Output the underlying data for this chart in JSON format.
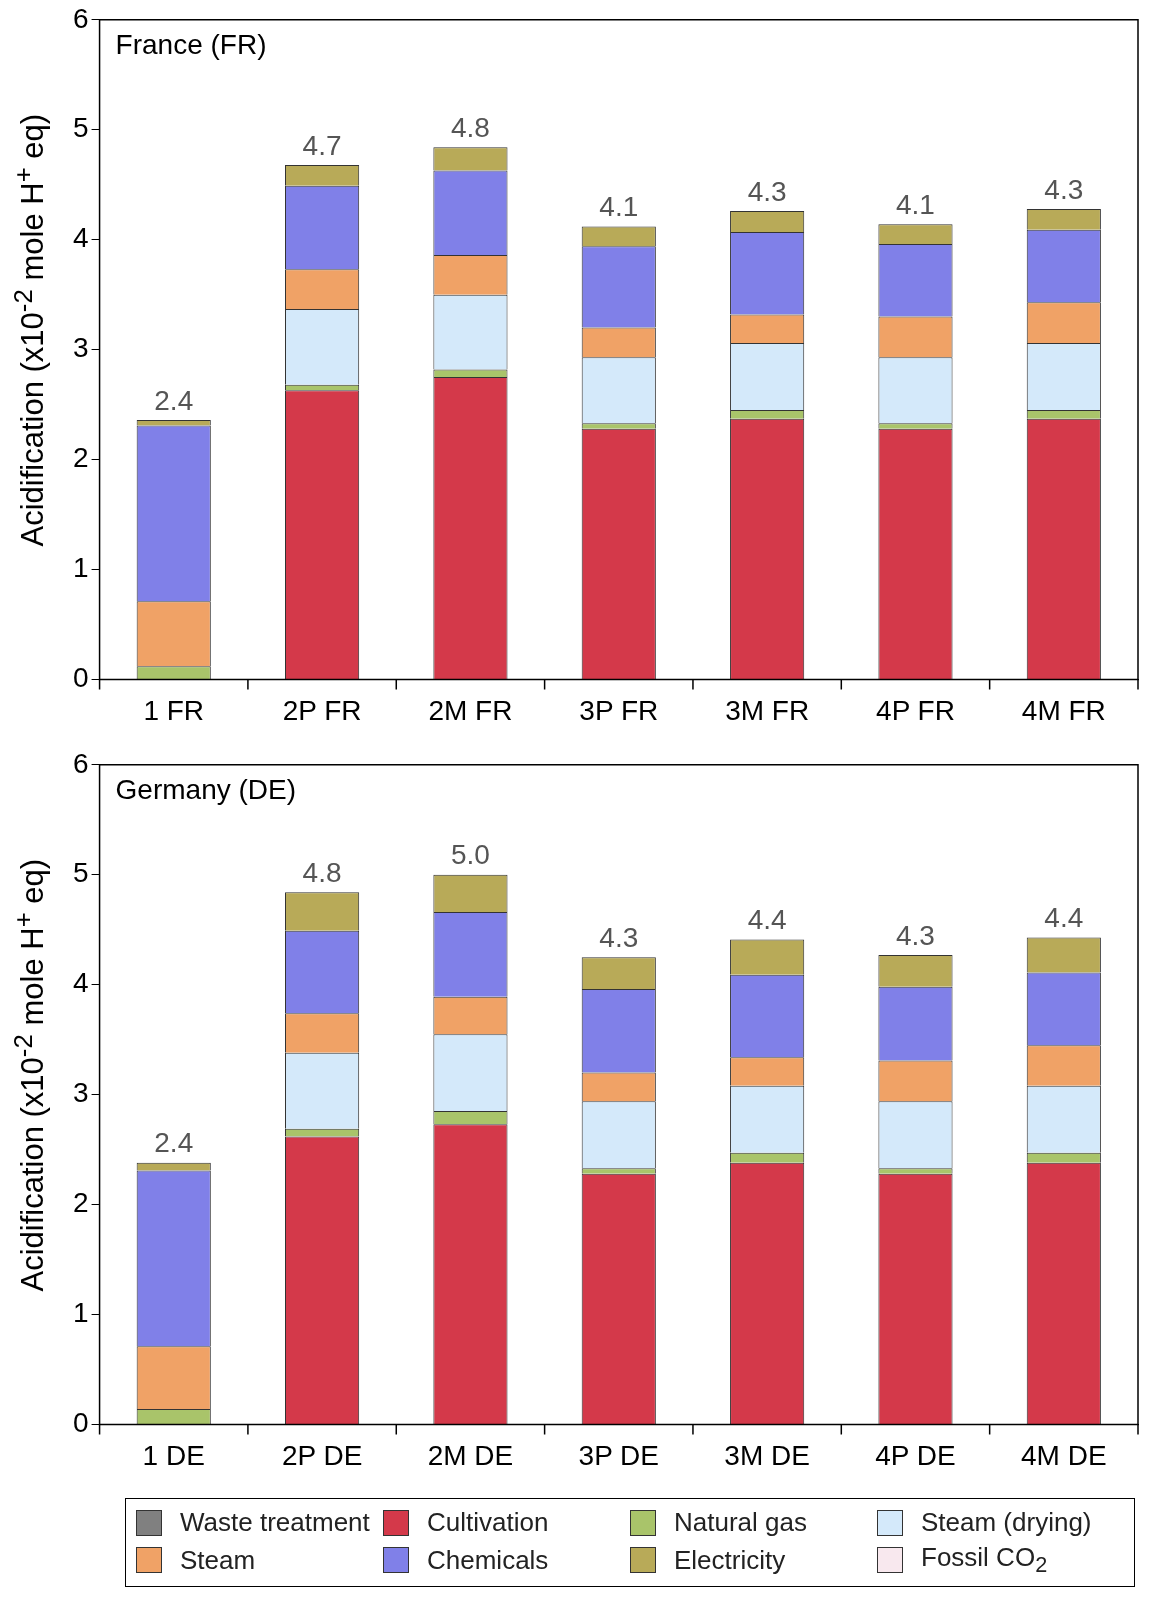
{
  "chart_data": [
    {
      "type": "bar",
      "stacked": true,
      "title": "France (FR)",
      "ylabel": "Acidification (x10$^{-2}$ mole H$^{+}$ eq)",
      "categories": [
        "1 FR",
        "2P FR",
        "2M FR",
        "3P FR",
        "3M FR",
        "4P FR",
        "4M FR"
      ],
      "ylim": [
        0,
        6
      ],
      "yticks": [
        0,
        1,
        2,
        3,
        4,
        5,
        6
      ],
      "grid": false,
      "legend": false,
      "series": [
        {
          "color": "#808080",
          "values": [
            0,
            0,
            0,
            0,
            0,
            0,
            0
          ]
        },
        {
          "color": "#d4394a",
          "values": [
            0,
            2.63,
            2.75,
            2.28,
            2.37,
            2.28,
            2.37
          ]
        },
        {
          "color": "#a9c46a",
          "values": [
            0.12,
            0.05,
            0.07,
            0.05,
            0.08,
            0.05,
            0.08
          ]
        },
        {
          "color": "#d4e9fa",
          "values": [
            0,
            0.69,
            0.68,
            0.6,
            0.61,
            0.6,
            0.61
          ]
        },
        {
          "color": "#f0a266",
          "values": [
            0.59,
            0.36,
            0.36,
            0.27,
            0.26,
            0.37,
            0.37
          ]
        },
        {
          "color": "#8080e8",
          "values": [
            1.6,
            0.76,
            0.77,
            0.74,
            0.75,
            0.66,
            0.66
          ]
        },
        {
          "color": "#b8aa58",
          "values": [
            0.05,
            0.19,
            0.21,
            0.18,
            0.19,
            0.18,
            0.19
          ]
        },
        {
          "color": "#f8e8ee",
          "values": [
            0,
            0,
            0,
            0,
            0,
            0,
            0
          ]
        }
      ],
      "totals": [
        "2.4",
        "4.7",
        "4.8",
        "4.1",
        "4.3",
        "4.1",
        "4.3"
      ]
    },
    {
      "type": "bar",
      "stacked": true,
      "title": "Germany (DE)",
      "ylabel": "Acidification (x10$^{-2}$ mole H$^{+}$ eq)",
      "categories": [
        "1 DE",
        "2P DE",
        "2M DE",
        "3P DE",
        "3M DE",
        "4P DE",
        "4M DE"
      ],
      "ylim": [
        0,
        6
      ],
      "yticks": [
        0,
        1,
        2,
        3,
        4,
        5,
        6
      ],
      "grid": false,
      "legend": "bottom",
      "series": [
        {
          "name": "Waste treatment",
          "color": "#808080",
          "values": [
            0,
            0,
            0,
            0,
            0,
            0,
            0
          ]
        },
        {
          "name": "Cultivation",
          "color": "#d4394a",
          "values": [
            0,
            2.62,
            2.73,
            2.28,
            2.38,
            2.28,
            2.38
          ]
        },
        {
          "name": "Natural gas",
          "color": "#a9c46a",
          "values": [
            0.14,
            0.07,
            0.12,
            0.05,
            0.09,
            0.05,
            0.09
          ]
        },
        {
          "name": "Steam (drying)",
          "color": "#d4e9fa",
          "values": [
            0,
            0.69,
            0.7,
            0.61,
            0.61,
            0.61,
            0.61
          ]
        },
        {
          "name": "Steam",
          "color": "#f0a266",
          "values": [
            0.57,
            0.36,
            0.34,
            0.26,
            0.26,
            0.37,
            0.37
          ]
        },
        {
          "name": "Chemicals",
          "color": "#8080e8",
          "values": [
            1.6,
            0.75,
            0.77,
            0.76,
            0.75,
            0.67,
            0.66
          ]
        },
        {
          "name": "Electricity",
          "color": "#b8aa58",
          "values": [
            0.07,
            0.35,
            0.34,
            0.29,
            0.32,
            0.29,
            0.32
          ]
        },
        {
          "name": "Fossil CO$_{2}$",
          "color": "#f8e8ee",
          "values": [
            0,
            0,
            0,
            0,
            0,
            0,
            0
          ]
        }
      ],
      "totals": [
        "2.4",
        "4.8",
        "5.0",
        "4.3",
        "4.4",
        "4.3",
        "4.4"
      ]
    }
  ]
}
